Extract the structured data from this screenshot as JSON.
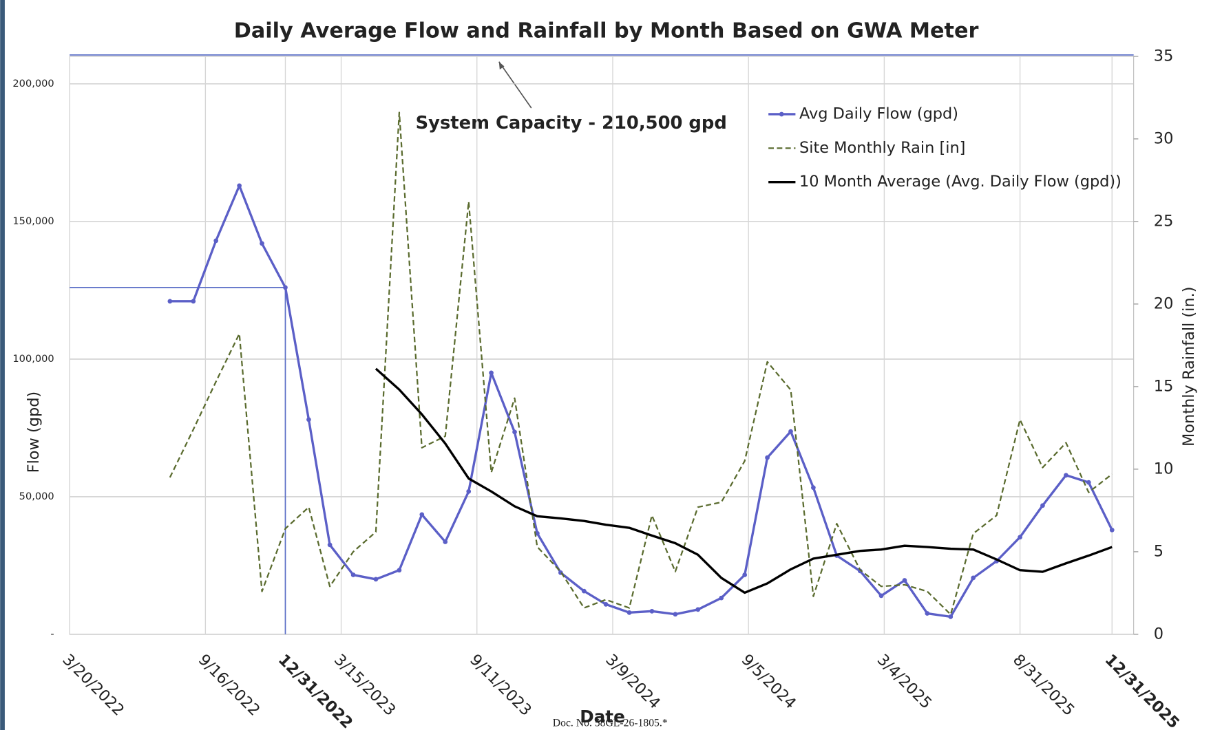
{
  "chart_data": {
    "type": "line",
    "title": "Daily Average Flow and Rainfall by Month Based on GWA Meter",
    "x_label": "Date",
    "y_label": "Flow (gpd)",
    "y2_label": "Monthly Rainfall (in.)",
    "annotation": "System Capacity - 210,500 gpd",
    "capacity": 210500,
    "footer": "Doc. No. 58GL-26-1805.*",
    "x": [
      "7/31/2022",
      "8/31/2022",
      "9/30/2022",
      "10/31/2022",
      "11/30/2022",
      "12/31/2022",
      "1/31/2023",
      "2/28/2023",
      "3/31/2023",
      "4/30/2023",
      "5/31/2023",
      "6/30/2023",
      "7/31/2023",
      "8/31/2023",
      "9/30/2023",
      "10/31/2023",
      "11/30/2023",
      "12/31/2023",
      "1/31/2024",
      "2/29/2024",
      "3/31/2024",
      "4/30/2024",
      "5/31/2024",
      "6/30/2024",
      "7/31/2024",
      "8/31/2024",
      "9/30/2024",
      "10/31/2024",
      "11/30/2024",
      "12/31/2024",
      "1/31/2025",
      "2/28/2025",
      "3/31/2025",
      "4/30/2025",
      "5/31/2025",
      "6/30/2025",
      "7/31/2025",
      "8/31/2025",
      "9/30/2025",
      "10/31/2025",
      "11/30/2025",
      "12/31/2025"
    ],
    "series": [
      {
        "name": "Avg Daily Flow (gpd)",
        "color": "#5b5fc7",
        "axis": "y",
        "style": "solid-marker",
        "values": [
          121000,
          121000,
          143000,
          163000,
          142000,
          126000,
          78000,
          32500,
          21600,
          20000,
          23300,
          43500,
          33600,
          51900,
          95000,
          73500,
          36700,
          22400,
          15700,
          10900,
          7900,
          8400,
          7300,
          9000,
          13200,
          21600,
          64200,
          73700,
          53300,
          28600,
          23000,
          14000,
          19600,
          7600,
          6400,
          20500,
          26600,
          35300,
          46800,
          57800,
          55200,
          37900
        ]
      },
      {
        "name": "Site Monthly Rain [in]",
        "color": "#5a6b2e",
        "axis": "y2",
        "style": "dashed",
        "values": [
          9.5,
          12.4,
          15.3,
          18.2,
          2.6,
          6.4,
          7.7,
          2.9,
          5.0,
          6.2,
          31.6,
          11.3,
          12.0,
          26.2,
          9.8,
          14.3,
          5.3,
          3.8,
          1.6,
          2.1,
          1.6,
          7.2,
          3.8,
          7.7,
          8.0,
          10.5,
          16.5,
          14.8,
          2.3,
          6.7,
          3.9,
          2.9,
          3.0,
          2.6,
          1.2,
          6.1,
          7.2,
          13.0,
          10.1,
          11.6,
          8.6,
          9.7
        ]
      },
      {
        "name": "10 Month Average (Avg. Daily Flow (gpd))",
        "color": "#000000",
        "axis": "y",
        "style": "solid",
        "values": [
          null,
          null,
          null,
          null,
          null,
          null,
          null,
          null,
          null,
          96500,
          88900,
          79900,
          69300,
          56600,
          51900,
          46500,
          42900,
          42100,
          41200,
          39800,
          38700,
          35900,
          33100,
          28900,
          20500,
          15100,
          18500,
          23600,
          27500,
          28900,
          30300,
          30800,
          32200,
          31700,
          31100,
          30800,
          27200,
          23300,
          22700,
          25800,
          28600,
          31700
        ]
      }
    ],
    "xlim": [
      "3/20/2022",
      "12/31/2025"
    ],
    "xticks": [
      "3/20/2022",
      "9/16/2022",
      "12/31/2022",
      "3/15/2023",
      "9/11/2023",
      "3/9/2024",
      "9/5/2024",
      "3/4/2025",
      "8/31/2025",
      "12/31/2025"
    ],
    "bold_xticks": [
      2,
      9
    ],
    "ylim": [
      0,
      210000
    ],
    "yticks": [
      {
        "value": 0,
        "label": "-"
      },
      {
        "value": 50000,
        "label": "50,000"
      },
      {
        "value": 100000,
        "label": "100,000"
      },
      {
        "value": 150000,
        "label": "150,000"
      },
      {
        "value": 200000,
        "label": "200,000"
      }
    ],
    "y2lim": [
      0,
      35
    ],
    "y2ticks": [
      0,
      5,
      10,
      15,
      20,
      25,
      30,
      35
    ],
    "grid": true,
    "legend": "top-right"
  }
}
